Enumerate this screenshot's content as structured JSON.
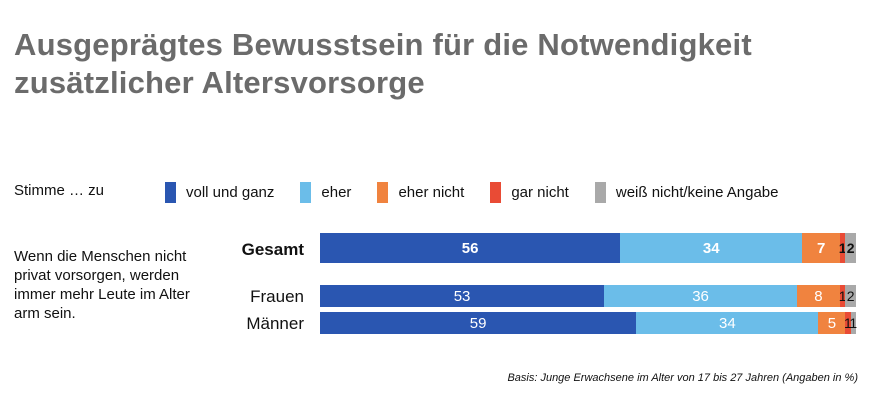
{
  "title_lines": [
    "Ausgeprägtes Bewusstsein für die Notwendigkeit",
    "zusätzlicher Altersvorsorge"
  ],
  "legend_prefix": "Stimme … zu",
  "question": "Wenn die Menschen nicht privat vorsorgen, werden immer mehr Leute im Alter arm sein.",
  "footnote": "Basis: Junge Erwachsene im Alter von 17 bis 27 Jahren (Angaben in %)",
  "chart_data": {
    "type": "bar",
    "orientation": "horizontal",
    "stacked": true,
    "xlim": [
      0,
      100
    ],
    "unit": "%",
    "categories": [
      "Gesamt",
      "Frauen",
      "Männer"
    ],
    "series": [
      {
        "name": "voll und ganz",
        "color": "#2a56b1",
        "values": [
          56,
          53,
          59
        ],
        "labels": [
          "56",
          "53",
          "59"
        ]
      },
      {
        "name": "eher",
        "color": "#6bbde9",
        "values": [
          34,
          36,
          34
        ],
        "labels": [
          "34",
          "36",
          "34"
        ]
      },
      {
        "name": "eher nicht",
        "color": "#f0833f",
        "values": [
          7,
          8,
          5
        ],
        "labels": [
          "7",
          "8",
          "5"
        ]
      },
      {
        "name": "gar nicht",
        "color": "#e94b35",
        "values": [
          1,
          1,
          1
        ],
        "labels": [
          "1",
          "1",
          "1"
        ]
      },
      {
        "name": "weiß nicht/keine Angabe",
        "color": "#a9a9a9",
        "values": [
          2,
          2,
          1
        ],
        "labels": [
          "2",
          "2",
          "1"
        ]
      }
    ]
  }
}
